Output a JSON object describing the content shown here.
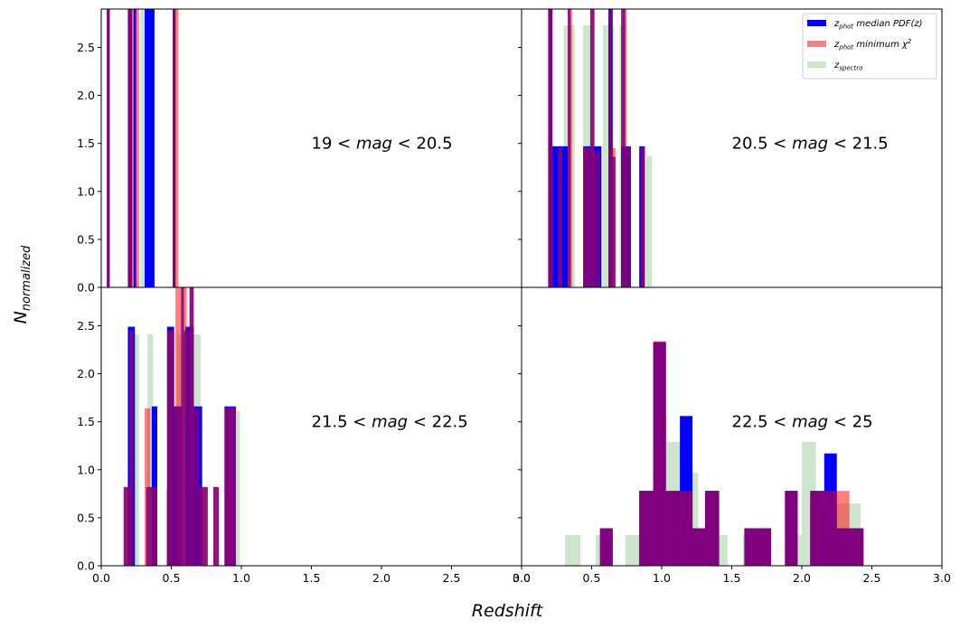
{
  "figure": {
    "ylabel_main": "N",
    "ylabel_sub": "normalized",
    "xlabel": "Redshift"
  },
  "legend": {
    "placement": "top-right",
    "entries": [
      {
        "main": "z",
        "sub": "phot",
        "rest": " median PDF(z)",
        "color": "#0000ff",
        "opacity": 1
      },
      {
        "main": "z",
        "sub": "phot",
        "rest": " minimum χ",
        "sup": "2",
        "color": "#ff0000",
        "opacity": 0.5
      },
      {
        "main": "z",
        "sub": "spectro",
        "rest": "",
        "color": "#008000",
        "opacity": 0.2
      }
    ]
  },
  "colors": {
    "median": "#0000ff",
    "minchi": "#ff0000",
    "spectro": "#008000",
    "overlap": "#800080"
  },
  "chart_data": [
    {
      "type": "bar",
      "panel": "top-left",
      "label": {
        "pre": "19 < ",
        "var": "mag",
        "post": " < 20.5"
      },
      "xlim": [
        0,
        3
      ],
      "ylim": [
        0,
        2.9
      ],
      "xticks": [],
      "xtick_labels": [],
      "yticks": [
        0,
        0.5,
        1.0,
        1.5,
        2.0,
        2.5
      ],
      "ytick_labels": [
        "0.0",
        "0.5",
        "1.0",
        "1.5",
        "2.0",
        "2.5"
      ],
      "series": [
        {
          "key": "spectro",
          "bins": [
            [
              0.28,
              0.32,
              2.9
            ]
          ]
        },
        {
          "key": "median",
          "bins": [
            [
              0.04,
              0.06,
              2.9
            ],
            [
              0.19,
              0.22,
              2.9
            ],
            [
              0.23,
              0.25,
              2.9
            ],
            [
              0.31,
              0.38,
              2.9
            ],
            [
              0.51,
              0.53,
              2.9
            ]
          ]
        },
        {
          "key": "minchi",
          "bins": [
            [
              0.04,
              0.06,
              2.9
            ],
            [
              0.19,
              0.23,
              2.9
            ],
            [
              0.24,
              0.27,
              2.9
            ],
            [
              0.51,
              0.55,
              2.9
            ]
          ]
        },
        {
          "key": "overlap",
          "bins": [
            [
              0.05,
              0.06,
              2.9
            ],
            [
              0.2,
              0.22,
              2.9
            ],
            [
              0.24,
              0.25,
              2.9
            ],
            [
              0.52,
              0.53,
              2.9
            ]
          ]
        }
      ]
    },
    {
      "type": "bar",
      "panel": "top-right",
      "label": {
        "pre": "20.5 < ",
        "var": "mag",
        "post": " < 21.5"
      },
      "xlim": [
        0,
        3
      ],
      "ylim": [
        0,
        2.9
      ],
      "xticks": [],
      "xtick_labels": [],
      "yticks": [
        0,
        0.5,
        1.0,
        1.5,
        2.0,
        2.5
      ],
      "ytick_labels": [],
      "series": [
        {
          "key": "spectro",
          "bins": [
            [
              0.3,
              0.38,
              2.73
            ],
            [
              0.44,
              0.5,
              2.73
            ],
            [
              0.58,
              0.66,
              2.73
            ],
            [
              0.7,
              0.74,
              2.73
            ],
            [
              0.89,
              0.93,
              1.37
            ]
          ]
        },
        {
          "key": "median",
          "bins": [
            [
              0.19,
              0.22,
              2.9
            ],
            [
              0.22,
              0.33,
              1.47
            ],
            [
              0.44,
              0.57,
              1.47
            ],
            [
              0.62,
              0.65,
              2.9
            ],
            [
              0.71,
              0.78,
              1.47
            ],
            [
              0.84,
              0.88,
              1.47
            ]
          ]
        },
        {
          "key": "minchi",
          "bins": [
            [
              0.19,
              0.22,
              2.9
            ],
            [
              0.26,
              0.29,
              1.45
            ],
            [
              0.33,
              0.36,
              2.9
            ],
            [
              0.44,
              0.48,
              1.45
            ],
            [
              0.49,
              0.52,
              2.9
            ],
            [
              0.62,
              0.67,
              1.45
            ],
            [
              0.72,
              0.75,
              2.9
            ],
            [
              0.85,
              0.88,
              1.45
            ]
          ]
        },
        {
          "key": "overlap",
          "bins": [
            [
              0.2,
              0.22,
              2.9
            ],
            [
              0.26,
              0.28,
              1.45
            ],
            [
              0.33,
              0.35,
              2.9
            ],
            [
              0.44,
              0.49,
              1.45
            ],
            [
              0.49,
              0.52,
              2.9
            ],
            [
              0.52,
              0.56,
              1.42
            ],
            [
              0.62,
              0.65,
              2.9
            ],
            [
              0.65,
              0.67,
              1.36
            ],
            [
              0.71,
              0.74,
              2.9
            ],
            [
              0.74,
              0.78,
              1.45
            ],
            [
              0.85,
              0.87,
              1.45
            ]
          ]
        }
      ]
    },
    {
      "type": "bar",
      "panel": "bottom-left",
      "label": {
        "pre": "21.5 < ",
        "var": "mag",
        "post": " < 22.5"
      },
      "xlim": [
        0,
        3
      ],
      "ylim": [
        0,
        2.9
      ],
      "xticks": [
        0,
        0.5,
        1.0,
        1.5,
        2.0,
        2.5,
        3.0
      ],
      "xtick_labels": [
        "0.0",
        "0.5",
        "1.0",
        "1.5",
        "2.0",
        "2.5",
        "3.0"
      ],
      "yticks": [
        0,
        0.5,
        1.0,
        1.5,
        2.0,
        2.5
      ],
      "ytick_labels": [
        "0.0",
        "0.5",
        "1.0",
        "1.5",
        "2.0",
        "2.5"
      ],
      "series": [
        {
          "key": "spectro",
          "bins": [
            [
              0.22,
              0.27,
              2.41
            ],
            [
              0.33,
              0.37,
              2.41
            ],
            [
              0.46,
              0.5,
              0.8
            ],
            [
              0.54,
              0.58,
              2.41
            ],
            [
              0.58,
              0.68,
              2.41
            ],
            [
              0.68,
              0.71,
              2.41
            ],
            [
              0.93,
              0.99,
              1.61
            ]
          ]
        },
        {
          "key": "median",
          "bins": [
            [
              0.19,
              0.24,
              2.49
            ],
            [
              0.36,
              0.4,
              1.66
            ],
            [
              0.47,
              0.52,
              2.49
            ],
            [
              0.52,
              0.58,
              1.66
            ],
            [
              0.6,
              0.66,
              2.49
            ],
            [
              0.66,
              0.72,
              1.66
            ],
            [
              0.88,
              0.96,
              1.66
            ]
          ]
        },
        {
          "key": "minchi",
          "bins": [
            [
              0.16,
              0.2,
              0.82
            ],
            [
              0.2,
              0.23,
              2.45
            ],
            [
              0.31,
              0.35,
              1.64
            ],
            [
              0.35,
              0.4,
              0.82
            ],
            [
              0.47,
              0.51,
              2.45
            ],
            [
              0.53,
              0.57,
              2.9
            ],
            [
              0.57,
              0.61,
              2.9
            ],
            [
              0.63,
              0.66,
              2.9
            ],
            [
              0.7,
              0.76,
              0.82
            ],
            [
              0.8,
              0.84,
              0.82
            ],
            [
              0.88,
              0.95,
              1.64
            ]
          ]
        },
        {
          "key": "overlap",
          "bins": [
            [
              0.16,
              0.2,
              0.82
            ],
            [
              0.2,
              0.23,
              2.45
            ],
            [
              0.32,
              0.39,
              0.82
            ],
            [
              0.47,
              0.52,
              2.45
            ],
            [
              0.52,
              0.57,
              1.64
            ],
            [
              0.57,
              0.59,
              2.9
            ],
            [
              0.59,
              0.63,
              2.45
            ],
            [
              0.63,
              0.66,
              2.9
            ],
            [
              0.66,
              0.7,
              1.64
            ],
            [
              0.7,
              0.76,
              0.82
            ],
            [
              0.8,
              0.84,
              0.82
            ],
            [
              0.88,
              0.96,
              1.64
            ]
          ]
        }
      ]
    },
    {
      "type": "bar",
      "panel": "bottom-right",
      "label": {
        "pre": "22.5 < ",
        "var": "mag",
        "post": " < 25"
      },
      "xlim": [
        0,
        3
      ],
      "ylim": [
        0,
        2.9
      ],
      "xticks": [
        0,
        0.5,
        1.0,
        1.5,
        2.0,
        2.5,
        3.0
      ],
      "xtick_labels": [
        "0.0",
        "0.5",
        "1.0",
        "1.5",
        "2.0",
        "2.5",
        "3.0"
      ],
      "yticks": [
        0,
        0.5,
        1.0,
        1.5,
        2.0,
        2.5
      ],
      "ytick_labels": [],
      "series": [
        {
          "key": "spectro",
          "bins": [
            [
              0.31,
              0.42,
              0.32
            ],
            [
              0.53,
              0.63,
              0.32
            ],
            [
              0.74,
              0.84,
              0.32
            ],
            [
              0.84,
              0.95,
              0.65
            ],
            [
              0.95,
              1.05,
              1.29
            ],
            [
              1.05,
              1.16,
              1.29
            ],
            [
              1.16,
              1.26,
              0.97
            ],
            [
              1.26,
              1.37,
              0.32
            ],
            [
              1.37,
              1.47,
              0.32
            ],
            [
              1.58,
              1.68,
              0.32
            ],
            [
              1.89,
              2.0,
              0.32
            ],
            [
              2.0,
              2.1,
              1.29
            ],
            [
              2.1,
              2.21,
              0.65
            ],
            [
              2.21,
              2.31,
              0.65
            ],
            [
              2.31,
              2.42,
              0.65
            ]
          ]
        },
        {
          "key": "median",
          "bins": [
            [
              0.56,
              0.65,
              0.39
            ],
            [
              0.84,
              0.94,
              0.78
            ],
            [
              0.94,
              1.03,
              2.33
            ],
            [
              1.03,
              1.13,
              0.78
            ],
            [
              1.13,
              1.22,
              1.56
            ],
            [
              1.22,
              1.31,
              0.39
            ],
            [
              1.31,
              1.41,
              0.78
            ],
            [
              1.59,
              1.69,
              0.39
            ],
            [
              1.69,
              1.78,
              0.39
            ],
            [
              1.88,
              1.97,
              0.78
            ],
            [
              2.06,
              2.16,
              0.78
            ],
            [
              2.16,
              2.25,
              1.17
            ],
            [
              2.25,
              2.34,
              0.39
            ],
            [
              2.34,
              2.44,
              0.39
            ]
          ]
        },
        {
          "key": "minchi",
          "bins": [
            [
              0.56,
              0.65,
              0.39
            ],
            [
              0.84,
              0.94,
              0.78
            ],
            [
              0.94,
              1.03,
              2.34
            ],
            [
              1.03,
              1.13,
              0.78
            ],
            [
              1.13,
              1.22,
              0.78
            ],
            [
              1.22,
              1.31,
              0.39
            ],
            [
              1.31,
              1.41,
              0.78
            ],
            [
              1.59,
              1.69,
              0.39
            ],
            [
              1.69,
              1.78,
              0.39
            ],
            [
              1.88,
              1.97,
              0.78
            ],
            [
              2.06,
              2.16,
              0.78
            ],
            [
              2.16,
              2.25,
              0.78
            ],
            [
              2.25,
              2.34,
              0.78
            ],
            [
              2.34,
              2.44,
              0.39
            ]
          ]
        },
        {
          "key": "overlap",
          "bins": [
            [
              0.56,
              0.65,
              0.39
            ],
            [
              0.84,
              0.94,
              0.78
            ],
            [
              0.94,
              1.03,
              2.33
            ],
            [
              1.03,
              1.13,
              0.39
            ],
            [
              1.13,
              1.22,
              0.78
            ],
            [
              1.22,
              1.31,
              0.32
            ],
            [
              1.31,
              1.41,
              0.78
            ],
            [
              1.59,
              1.69,
              0.39
            ],
            [
              1.69,
              1.78,
              0.39
            ],
            [
              1.88,
              1.97,
              0.78
            ],
            [
              2.06,
              2.16,
              0.65
            ],
            [
              2.16,
              2.25,
              0.78
            ],
            [
              2.25,
              2.34,
              0.39
            ],
            [
              2.34,
              2.44,
              0.39
            ]
          ]
        }
      ]
    }
  ]
}
